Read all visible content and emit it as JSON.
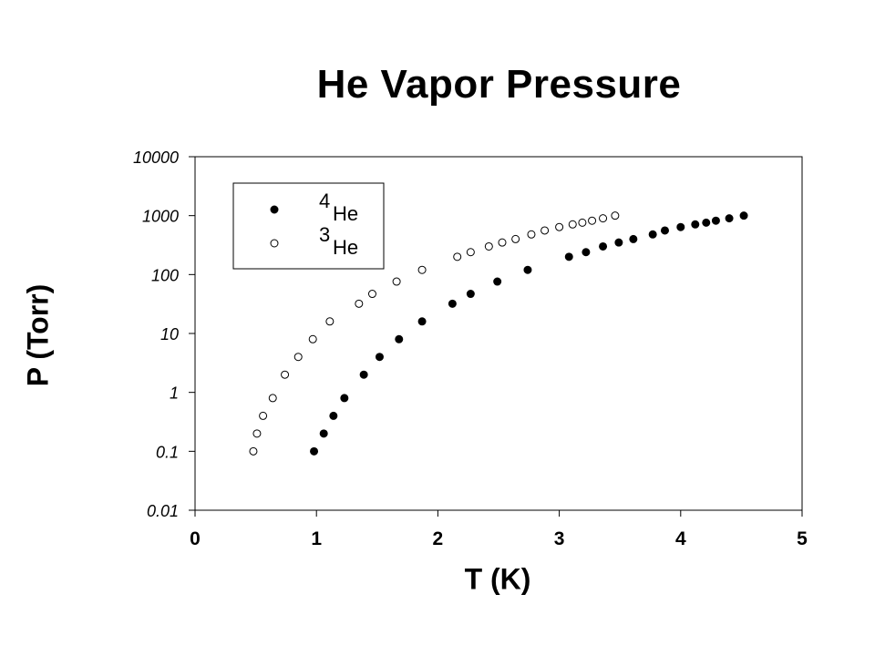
{
  "chart_data": {
    "type": "scatter",
    "title": "He Vapor Pressure",
    "xlabel": "T (K)",
    "ylabel": "P (Torr)",
    "xlim": [
      0,
      5
    ],
    "ylim": [
      0.01,
      10000
    ],
    "yscale": "log",
    "xticks": [
      "0",
      "1",
      "2",
      "3",
      "4",
      "5"
    ],
    "yticks": [
      "0.01",
      "0.1",
      "1",
      "10",
      "100",
      "1000",
      "10000"
    ],
    "grid": false,
    "legend_position": "top-left",
    "series": [
      {
        "name": "4He",
        "name_super": "4",
        "name_base": "He",
        "marker": "filled-circle",
        "x": [
          0.98,
          1.06,
          1.14,
          1.23,
          1.39,
          1.52,
          1.68,
          1.87,
          2.12,
          2.27,
          2.49,
          2.74,
          3.08,
          3.22,
          3.36,
          3.49,
          3.61,
          3.77,
          3.87,
          4.0,
          4.12,
          4.21,
          4.29,
          4.4,
          4.52
        ],
        "y": [
          0.1,
          0.2,
          0.4,
          0.8,
          2,
          4,
          8,
          16,
          32,
          47,
          76,
          120,
          200,
          240,
          300,
          350,
          400,
          480,
          560,
          640,
          710,
          760,
          820,
          900,
          1000
        ]
      },
      {
        "name": "3He",
        "name_super": "3",
        "name_base": "He",
        "marker": "open-circle",
        "x": [
          0.48,
          0.51,
          0.56,
          0.64,
          0.74,
          0.85,
          0.97,
          1.11,
          1.35,
          1.46,
          1.66,
          1.87,
          2.16,
          2.27,
          2.42,
          2.53,
          2.64,
          2.77,
          2.88,
          3.0,
          3.11,
          3.19,
          3.27,
          3.36,
          3.46
        ],
        "y": [
          0.1,
          0.2,
          0.4,
          0.8,
          2,
          4,
          8,
          16,
          32,
          47,
          76,
          120,
          200,
          240,
          300,
          350,
          400,
          480,
          560,
          640,
          710,
          760,
          820,
          900,
          1000
        ]
      }
    ]
  }
}
